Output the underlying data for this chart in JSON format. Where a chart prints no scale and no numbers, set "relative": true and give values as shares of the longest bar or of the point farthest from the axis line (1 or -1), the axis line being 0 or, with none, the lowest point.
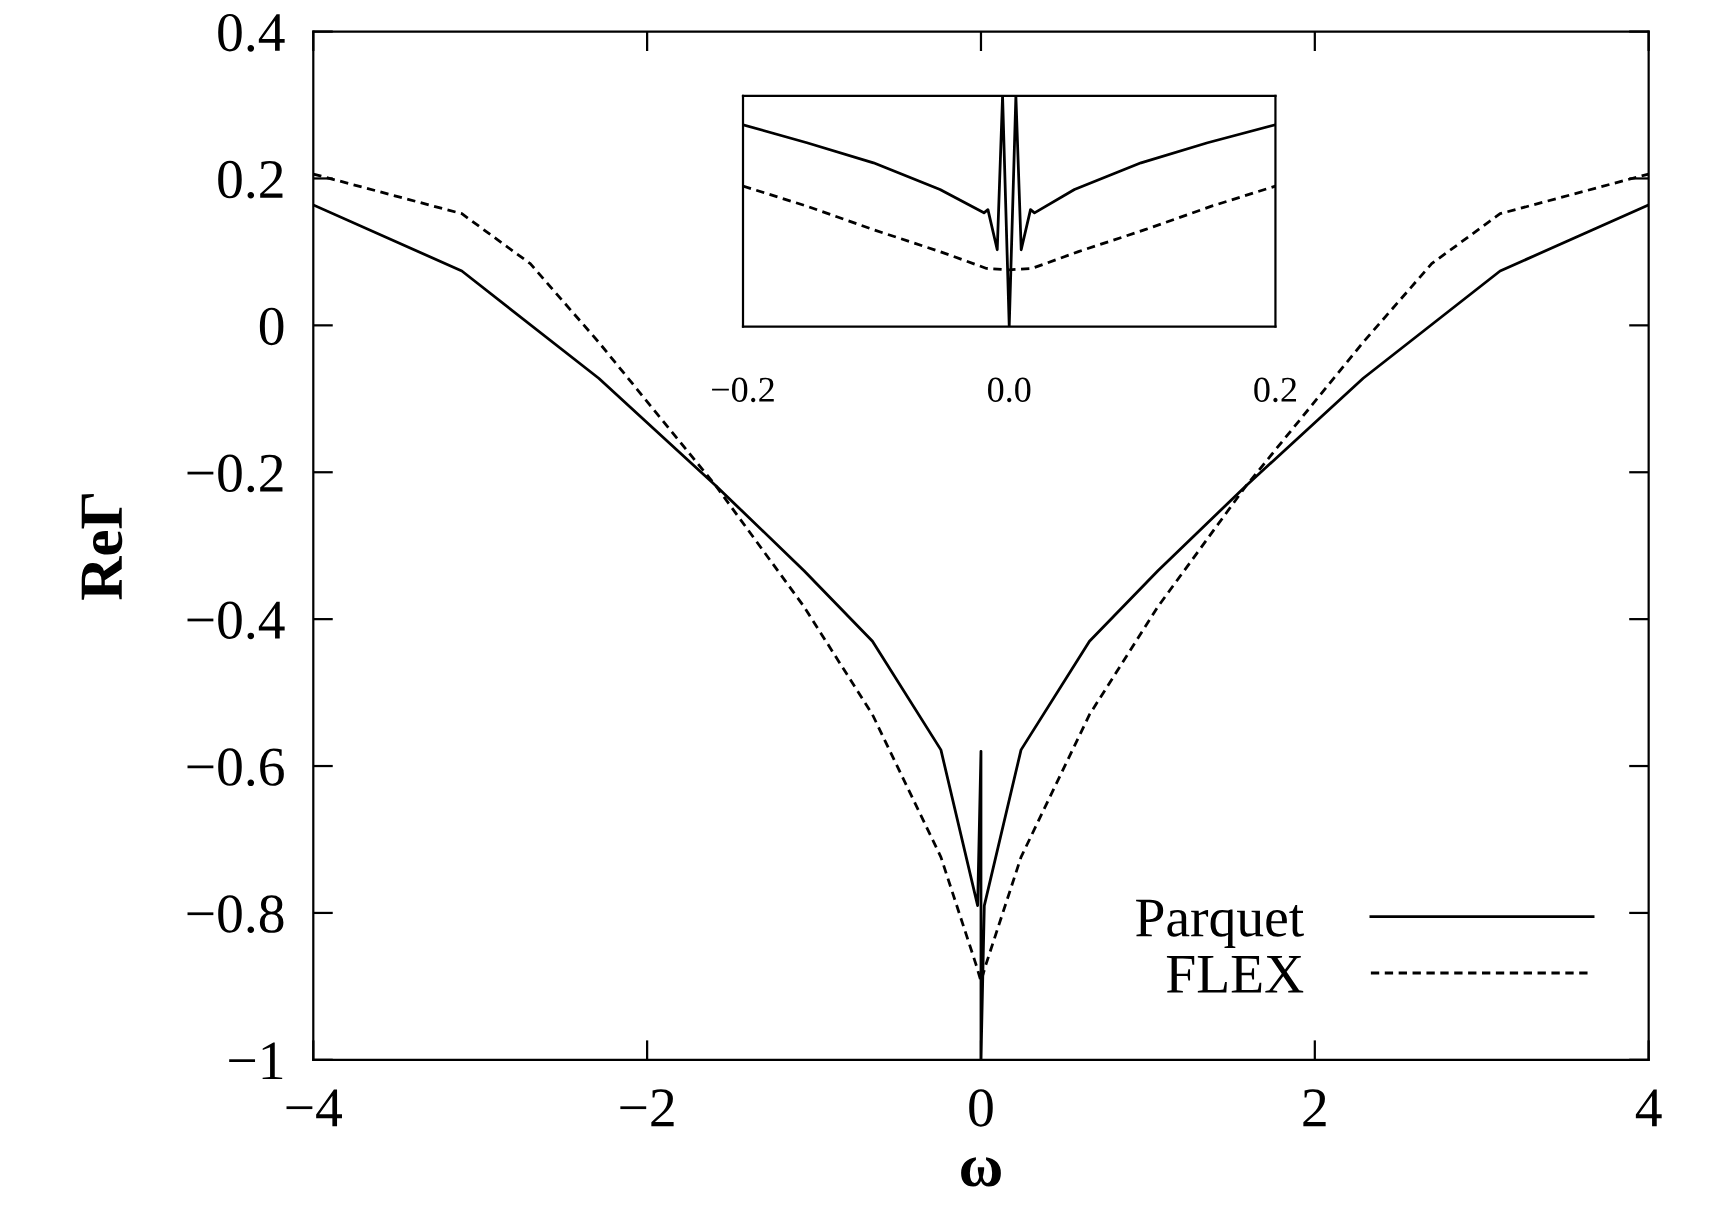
{
  "chart_data": [
    {
      "type": "line",
      "xlabel": "ω",
      "ylabel": "ReΓ",
      "xlim": [
        -4,
        4
      ],
      "ylim": [
        -1,
        0.4
      ],
      "xticks": [
        {
          "value": -4,
          "label": "−4"
        },
        {
          "value": -2,
          "label": "−2"
        },
        0,
        2,
        4
      ],
      "yticks": [
        {
          "value": -1,
          "label": "−1"
        },
        {
          "value": -0.8,
          "label": "−0.8"
        },
        {
          "value": -0.6,
          "label": "−0.6"
        },
        {
          "value": -0.4,
          "label": "−0.4"
        },
        {
          "value": -0.2,
          "label": "−0.2"
        },
        0,
        0.2,
        0.4
      ],
      "grid": false,
      "legend": "bottom right",
      "series": [
        {
          "name": "Parquet",
          "color": "#000000",
          "line_style": "solid",
          "x": [
            -4,
            -3.11,
            -2.29,
            -1.59,
            -1.06,
            -0.65,
            -0.24,
            -0.02,
            0,
            0,
            0.02,
            0.24,
            0.65,
            1.06,
            1.59,
            2.29,
            3.11,
            4
          ],
          "values": [
            0.164,
            0.074,
            -0.072,
            -0.218,
            -0.334,
            -0.43,
            -0.578,
            -0.79,
            -0.58,
            -1,
            -0.79,
            -0.578,
            -0.43,
            -0.334,
            -0.218,
            -0.072,
            0.074,
            0.164
          ]
        },
        {
          "name": "FLEX",
          "color": "#000000",
          "line_style": "dashed",
          "x": [
            -4,
            -3.11,
            -2.7,
            -2.29,
            -1.59,
            -1.06,
            -0.65,
            -0.24,
            -0.03,
            0,
            0.03,
            0.24,
            0.65,
            1.06,
            1.59,
            2.29,
            2.7,
            3.11,
            4
          ],
          "values": [
            0.206,
            0.152,
            0.084,
            -0.023,
            -0.218,
            -0.383,
            -0.53,
            -0.724,
            -0.87,
            -0.893,
            -0.87,
            -0.724,
            -0.53,
            -0.383,
            -0.218,
            -0.023,
            0.084,
            0.152,
            0.206
          ]
        }
      ]
    },
    {
      "type": "line",
      "relative": true,
      "xlim": [
        -0.2,
        0.2
      ],
      "tick_labels": "x",
      "xticks": [
        {
          "value": -0.2,
          "label": "−0.2"
        },
        {
          "value": 0,
          "label": "0.0"
        },
        {
          "value": 0.2,
          "label": "0.2"
        }
      ],
      "series": [
        {
          "color": "#000000",
          "line_style": "solid",
          "x": [
            -0.2,
            -0.152,
            -0.102,
            -0.052,
            -0.019,
            -0.016,
            -0.009,
            -0.005,
            0,
            0.005,
            0.009,
            0.016,
            0.019,
            0.049,
            0.099,
            0.149,
            0.2
          ],
          "values": [
            0.875,
            0.797,
            0.71,
            0.594,
            0.493,
            0.507,
            0.333,
            1.0,
            0,
            1.0,
            0.333,
            0.507,
            0.493,
            0.594,
            0.71,
            0.797,
            0.875
          ]
        },
        {
          "color": "#000000",
          "line_style": "dashed",
          "x": [
            -0.2,
            -0.152,
            -0.102,
            -0.052,
            -0.017,
            0,
            0.017,
            0.052,
            0.102,
            0.152,
            0.2
          ],
          "values": [
            0.609,
            0.522,
            0.42,
            0.325,
            0.252,
            0.246,
            0.252,
            0.325,
            0.42,
            0.522,
            0.609
          ]
        }
      ]
    }
  ]
}
